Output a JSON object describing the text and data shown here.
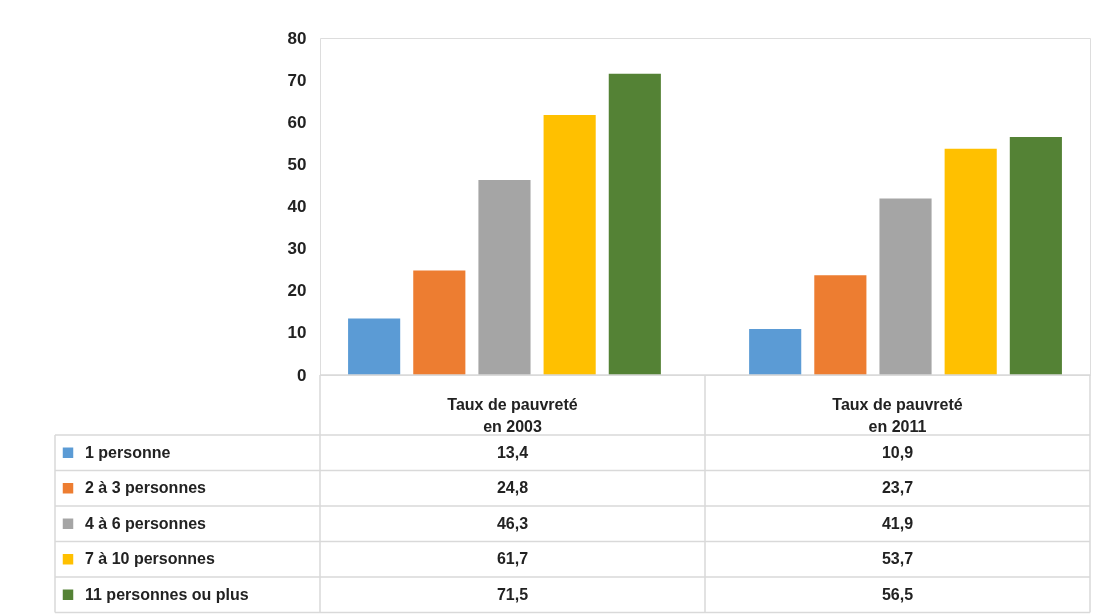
{
  "chart_data": {
    "type": "bar",
    "categories": [
      "Taux de pauvreté en 2003",
      "Taux de pauvreté en 2011"
    ],
    "series": [
      {
        "name": "1 personne",
        "color": "#5b9bd5",
        "values": [
          13.4,
          10.9
        ],
        "value_labels": [
          "13,4",
          "10,9"
        ]
      },
      {
        "name": "2 à 3 personnes",
        "color": "#ed7d31",
        "values": [
          24.8,
          23.7
        ],
        "value_labels": [
          "24,8",
          "23,7"
        ]
      },
      {
        "name": "4 à 6 personnes",
        "color": "#a5a5a5",
        "values": [
          46.3,
          41.9
        ],
        "value_labels": [
          "46,3",
          "41,9"
        ]
      },
      {
        "name": "7 à 10 personnes",
        "color": "#ffc000",
        "values": [
          61.7,
          53.7
        ],
        "value_labels": [
          "61,7",
          "53,7"
        ]
      },
      {
        "name": "11 personnes ou plus",
        "color": "#548235",
        "values": [
          71.5,
          56.5
        ],
        "value_labels": [
          "71,5",
          "56,5"
        ]
      }
    ],
    "ylim": [
      0,
      80
    ],
    "yticks": [
      0,
      10,
      20,
      30,
      40,
      50,
      60,
      70,
      80
    ],
    "grid": false,
    "legend": "bottom"
  }
}
